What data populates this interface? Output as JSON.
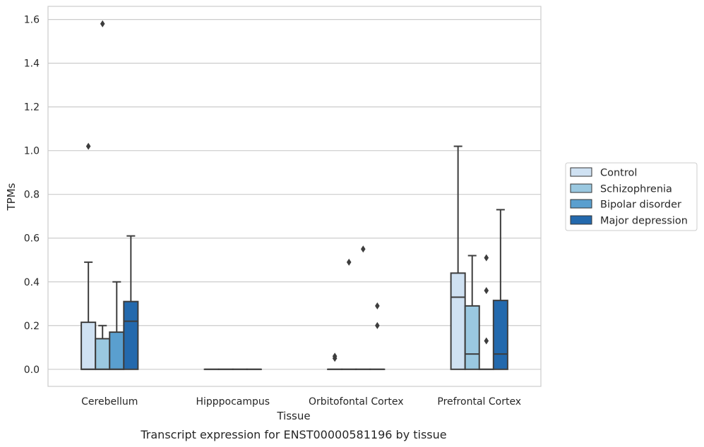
{
  "caption": "Transcript expression for ENST00000581196 by tissue",
  "chart_data": {
    "type": "box",
    "xlabel": "Tissue",
    "ylabel": "TPMs",
    "ylim": [
      -0.078,
      1.66
    ],
    "yticks": [
      "0.0",
      "0.2",
      "0.4",
      "0.6",
      "0.8",
      "1.0",
      "1.2",
      "1.4",
      "1.6"
    ],
    "grid": "horizontal",
    "legend_position": "right",
    "categories": [
      "Cerebellum",
      "Hipppocampus",
      "Orbitofontal Cortex",
      "Prefrontal Cortex"
    ],
    "series": [
      {
        "name": "Control",
        "color": "#cfe1f2",
        "boxes": [
          {
            "q1": 0,
            "median": 0,
            "q3": 0.215,
            "whisker_low": 0,
            "whisker_high": 0.49,
            "outliers": [
              1.02
            ]
          },
          {
            "q1": 0,
            "median": 0,
            "q3": 0,
            "whisker_low": 0,
            "whisker_high": 0,
            "outliers": []
          },
          {
            "q1": 0,
            "median": 0,
            "q3": 0,
            "whisker_low": 0,
            "whisker_high": 0,
            "outliers": [
              0.05,
              0.06
            ]
          },
          {
            "q1": 0,
            "median": 0.33,
            "q3": 0.44,
            "whisker_low": 0,
            "whisker_high": 1.02,
            "outliers": []
          }
        ]
      },
      {
        "name": "Schizophrenia",
        "color": "#9ac8e0",
        "boxes": [
          {
            "q1": 0,
            "median": 0,
            "q3": 0.14,
            "whisker_low": 0,
            "whisker_high": 0.2,
            "outliers": [
              1.58
            ]
          },
          {
            "q1": 0,
            "median": 0,
            "q3": 0,
            "whisker_low": 0,
            "whisker_high": 0,
            "outliers": []
          },
          {
            "q1": 0,
            "median": 0,
            "q3": 0,
            "whisker_low": 0,
            "whisker_high": 0,
            "outliers": [
              0.49
            ]
          },
          {
            "q1": 0,
            "median": 0.07,
            "q3": 0.29,
            "whisker_low": 0,
            "whisker_high": 0.52,
            "outliers": []
          }
        ]
      },
      {
        "name": "Bipolar disorder",
        "color": "#5a9fcf",
        "boxes": [
          {
            "q1": 0,
            "median": 0,
            "q3": 0.17,
            "whisker_low": 0,
            "whisker_high": 0.4,
            "outliers": []
          },
          {
            "q1": 0,
            "median": 0,
            "q3": 0,
            "whisker_low": 0,
            "whisker_high": 0,
            "outliers": []
          },
          {
            "q1": 0,
            "median": 0,
            "q3": 0,
            "whisker_low": 0,
            "whisker_high": 0,
            "outliers": [
              0.55
            ]
          },
          {
            "q1": 0,
            "median": 0,
            "q3": 0,
            "whisker_low": 0,
            "whisker_high": 0,
            "outliers": [
              0.51,
              0.36,
              0.13
            ]
          }
        ]
      },
      {
        "name": "Major depression",
        "color": "#2369ad",
        "boxes": [
          {
            "q1": 0,
            "median": 0.22,
            "q3": 0.31,
            "whisker_low": 0,
            "whisker_high": 0.61,
            "outliers": []
          },
          {
            "q1": 0,
            "median": 0,
            "q3": 0,
            "whisker_low": 0,
            "whisker_high": 0,
            "outliers": []
          },
          {
            "q1": 0,
            "median": 0,
            "q3": 0,
            "whisker_low": 0,
            "whisker_high": 0,
            "outliers": [
              0.29,
              0.2
            ]
          },
          {
            "q1": 0,
            "median": 0.07,
            "q3": 0.315,
            "whisker_low": 0,
            "whisker_high": 0.73,
            "outliers": []
          }
        ]
      }
    ]
  }
}
